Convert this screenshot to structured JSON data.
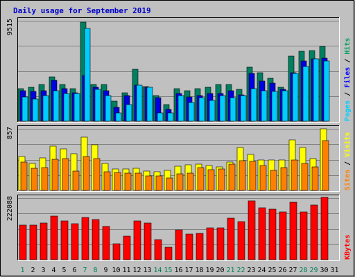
{
  "chart_data": {
    "type": "bar",
    "title": "Daily usage for September 2019",
    "categories": [
      "1",
      "2",
      "3",
      "4",
      "5",
      "6",
      "7",
      "8",
      "9",
      "10",
      "11",
      "12",
      "13",
      "14",
      "15",
      "16",
      "17",
      "18",
      "19",
      "20",
      "21",
      "22",
      "23",
      "24",
      "25",
      "26",
      "27",
      "28",
      "29",
      "30",
      "31"
    ],
    "weekend_days": [
      "1",
      "7",
      "8",
      "14",
      "15",
      "21",
      "22",
      "28",
      "29"
    ],
    "panels": [
      {
        "max_label": "9515",
        "ymax": 9515,
        "legend": [
          {
            "text": "Pages",
            "color": "#00ccff"
          },
          {
            "text": "Files",
            "color": "#0000ff"
          },
          {
            "text": "Hits",
            "color": "#00a060"
          }
        ],
        "separator": " / ",
        "series": [
          {
            "name": "Hits",
            "color": "#008060",
            "values": [
              3100,
              3200,
              3500,
              4200,
              3500,
              3100,
              9400,
              3500,
              3500,
              1900,
              2700,
              4900,
              3300,
              2400,
              1600,
              3100,
              2900,
              3100,
              3200,
              3500,
              3500,
              3000,
              5100,
              4600,
              4100,
              3200,
              6200,
              6600,
              6700,
              7100,
              null
            ]
          },
          {
            "name": "Files",
            "color": "#0000e0",
            "values": [
              2900,
              2800,
              2900,
              3900,
              3100,
              2700,
              4300,
              3200,
              2900,
              1300,
              2400,
              3400,
              3200,
              2200,
              1100,
              2600,
              2300,
              2400,
              2600,
              2600,
              2900,
              2500,
              4500,
              3800,
              3600,
              3000,
              4600,
              5700,
              5900,
              6000,
              null
            ]
          },
          {
            "name": "Pages",
            "color": "#00ccff",
            "values": [
              2300,
              2100,
              2400,
              2900,
              2600,
              2600,
              8800,
              3000,
              2400,
              800,
              1600,
              3400,
              3200,
              800,
              800,
              2400,
              1800,
              2200,
              2000,
              2400,
              2200,
              2400,
              3100,
              2900,
              2800,
              2900,
              4500,
              5200,
              5900,
              5700,
              null
            ]
          }
        ]
      },
      {
        "max_label": "857",
        "ymax": 857,
        "legend": [
          {
            "text": "Sites",
            "color": "#ff8000"
          },
          {
            "text": "Visits",
            "color": "#ffff00"
          }
        ],
        "separator": " / ",
        "series": [
          {
            "name": "Visits",
            "color": "#ffff00",
            "values": [
              470,
              380,
              450,
              620,
              580,
              510,
              740,
              640,
              380,
              300,
              300,
              310,
              270,
              260,
              280,
              340,
              360,
              370,
              350,
              330,
              390,
              600,
              500,
              420,
              420,
              420,
              700,
              600,
              440,
              860,
              null
            ]
          },
          {
            "name": "Sites",
            "color": "#ff8000",
            "values": [
              390,
              310,
              320,
              430,
              440,
              270,
              470,
              440,
              260,
              250,
              240,
              240,
              200,
              200,
              170,
              230,
              240,
              320,
              290,
              300,
              370,
              410,
              400,
              350,
              280,
              320,
              420,
              380,
              330,
              690,
              null
            ]
          }
        ]
      },
      {
        "max_label": "222088",
        "ymax": 222088,
        "legend": [
          {
            "text": "KBytes",
            "color": "#ff0000"
          }
        ],
        "separator": "",
        "series": [
          {
            "name": "KBytes",
            "color": "#ff0000",
            "values": [
              125000,
              125000,
              132000,
              157000,
              139000,
              129000,
              153000,
              144000,
              120000,
              57000,
              84000,
              140000,
              133000,
              73000,
              44000,
              107000,
              92000,
              94000,
              116000,
              114000,
              149000,
              136000,
              212000,
              187000,
              181000,
              172000,
              206000,
              173000,
              197000,
              225000,
              null
            ]
          }
        ]
      }
    ]
  }
}
